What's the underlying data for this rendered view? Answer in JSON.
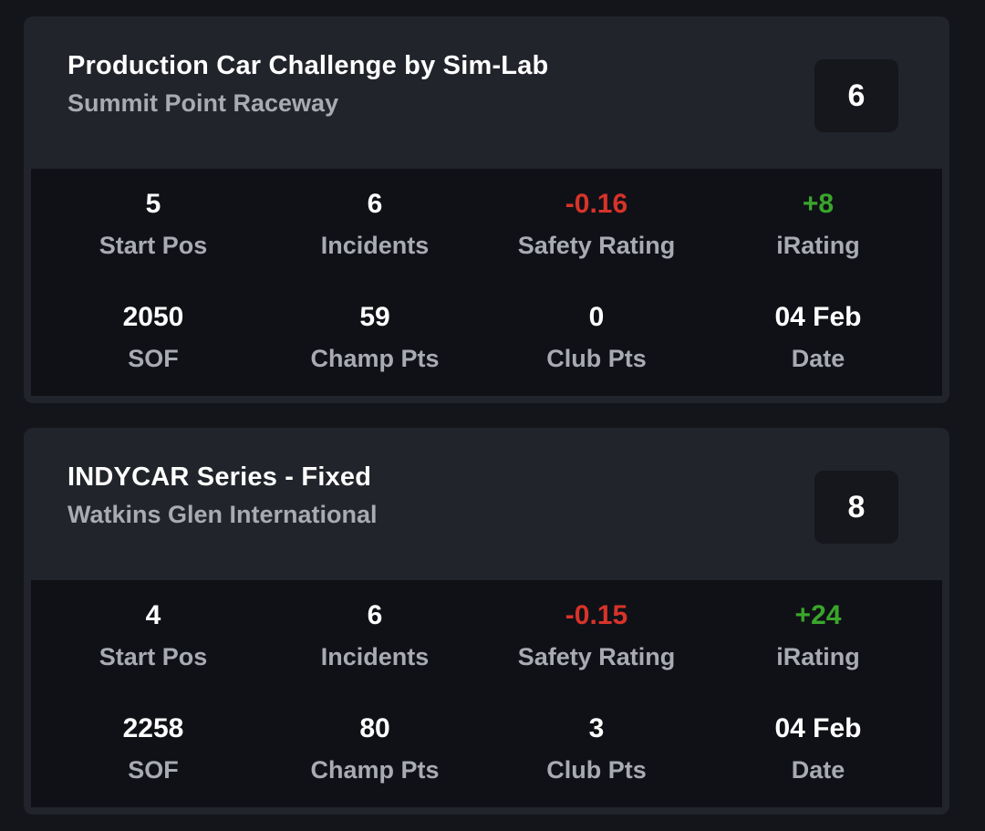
{
  "colors": {
    "background": "#14151b",
    "card": "#22242b",
    "stats_panel": "#101117",
    "badge": "#16171d",
    "negative": "#d8332a",
    "positive": "#3aa52b",
    "label": "#a9abb2"
  },
  "races": [
    {
      "title": "Production Car Challenge by Sim-Lab",
      "track": "Summit Point Raceway",
      "finish_position": "6",
      "stats": {
        "start_pos": {
          "value": "5",
          "label": "Start Pos"
        },
        "incidents": {
          "value": "6",
          "label": "Incidents"
        },
        "safety_rating": {
          "value": "-0.16",
          "label": "Safety Rating"
        },
        "irating": {
          "value": "+8",
          "label": "iRating"
        },
        "sof": {
          "value": "2050",
          "label": "SOF"
        },
        "champ_pts": {
          "value": "59",
          "label": "Champ Pts"
        },
        "club_pts": {
          "value": "0",
          "label": "Club Pts"
        },
        "date": {
          "value": "04 Feb",
          "label": "Date"
        }
      }
    },
    {
      "title": "INDYCAR Series - Fixed",
      "track": "Watkins Glen International",
      "finish_position": "8",
      "stats": {
        "start_pos": {
          "value": "4",
          "label": "Start Pos"
        },
        "incidents": {
          "value": "6",
          "label": "Incidents"
        },
        "safety_rating": {
          "value": "-0.15",
          "label": "Safety Rating"
        },
        "irating": {
          "value": "+24",
          "label": "iRating"
        },
        "sof": {
          "value": "2258",
          "label": "SOF"
        },
        "champ_pts": {
          "value": "80",
          "label": "Champ Pts"
        },
        "club_pts": {
          "value": "3",
          "label": "Club Pts"
        },
        "date": {
          "value": "04 Feb",
          "label": "Date"
        }
      }
    }
  ]
}
